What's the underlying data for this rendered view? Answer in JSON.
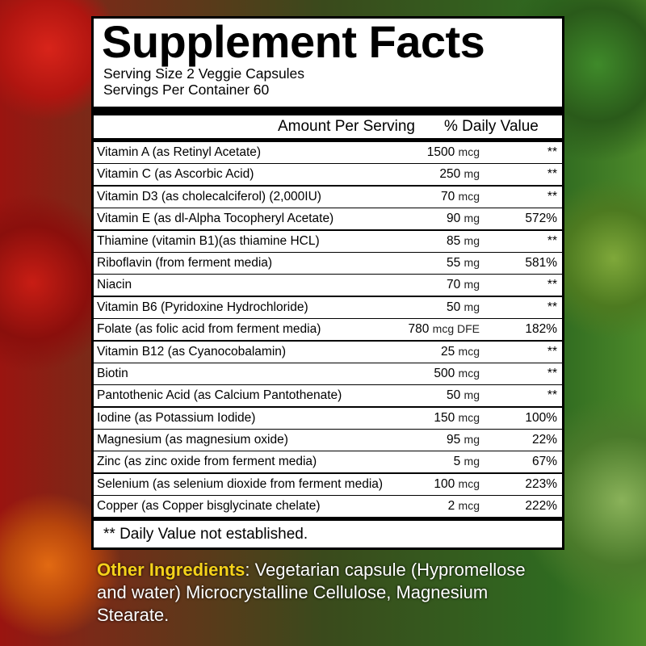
{
  "title": "Supplement Facts",
  "serving_size": "Serving Size 2 Veggie Capsules",
  "servings_per_container": "Servings Per Container 60",
  "header": {
    "amount": "Amount Per Serving",
    "daily_value": "% Daily Value"
  },
  "rows": [
    {
      "name": "Vitamin A (as Retinyl Acetate)",
      "qty": "1500",
      "unit": "mcg",
      "dv": "**"
    },
    {
      "name": "Vitamin C (as Ascorbic Acid)",
      "qty": "250",
      "unit": "mg",
      "dv": "**"
    },
    {
      "name": "Vitamin D3 (as cholecalciferol) (2,000IU)",
      "qty": "70",
      "unit": "mcg",
      "dv": "**"
    },
    {
      "name": "Vitamin E (as dl-Alpha Tocopheryl Acetate)",
      "qty": "90",
      "unit": "mg",
      "dv": "572%"
    },
    {
      "name": "Thiamine (vitamin B1)(as thiamine HCL)",
      "qty": "85",
      "unit": "mg",
      "dv": "**"
    },
    {
      "name": "Riboflavin (from ferment media)",
      "qty": "55",
      "unit": "mg",
      "dv": "581%"
    },
    {
      "name": "Niacin",
      "qty": "70",
      "unit": "mg",
      "dv": "**"
    },
    {
      "name": "Vitamin B6 (Pyridoxine Hydrochloride)",
      "qty": "50",
      "unit": "mg",
      "dv": "**"
    },
    {
      "name": "Folate (as folic acid from ferment media)",
      "qty": "780",
      "unit": "mcg DFE",
      "dv": "182%"
    },
    {
      "name": "Vitamin B12 (as Cyanocobalamin)",
      "qty": "25",
      "unit": "mcg",
      "dv": "**"
    },
    {
      "name": "Biotin",
      "qty": "500",
      "unit": "mcg",
      "dv": "**"
    },
    {
      "name": "Pantothenic Acid (as Calcium Pantothenate)",
      "qty": "50",
      "unit": "mg",
      "dv": "**"
    },
    {
      "name": "Iodine (as Potassium Iodide)",
      "qty": "150",
      "unit": "mcg",
      "dv": "100%"
    },
    {
      "name": "Magnesium (as magnesium oxide)",
      "qty": "95",
      "unit": "mg",
      "dv": "22%"
    },
    {
      "name": "Zinc (as zinc oxide from ferment media)",
      "qty": "5",
      "unit": "mg",
      "dv": "67%"
    },
    {
      "name": "Selenium (as selenium dioxide from ferment media)",
      "qty": "100",
      "unit": "mcg",
      "dv": "223%"
    },
    {
      "name": "Copper (as Copper bisglycinate chelate)",
      "qty": "2",
      "unit": "mcg",
      "dv": "222%"
    }
  ],
  "footnote": "** Daily Value not established.",
  "other_ingredients": {
    "label": "Other Ingredients",
    "text": ":  Vegetarian capsule (Hypromellose and water) Microcrystalline Cellulose, Magnesium Stearate."
  }
}
